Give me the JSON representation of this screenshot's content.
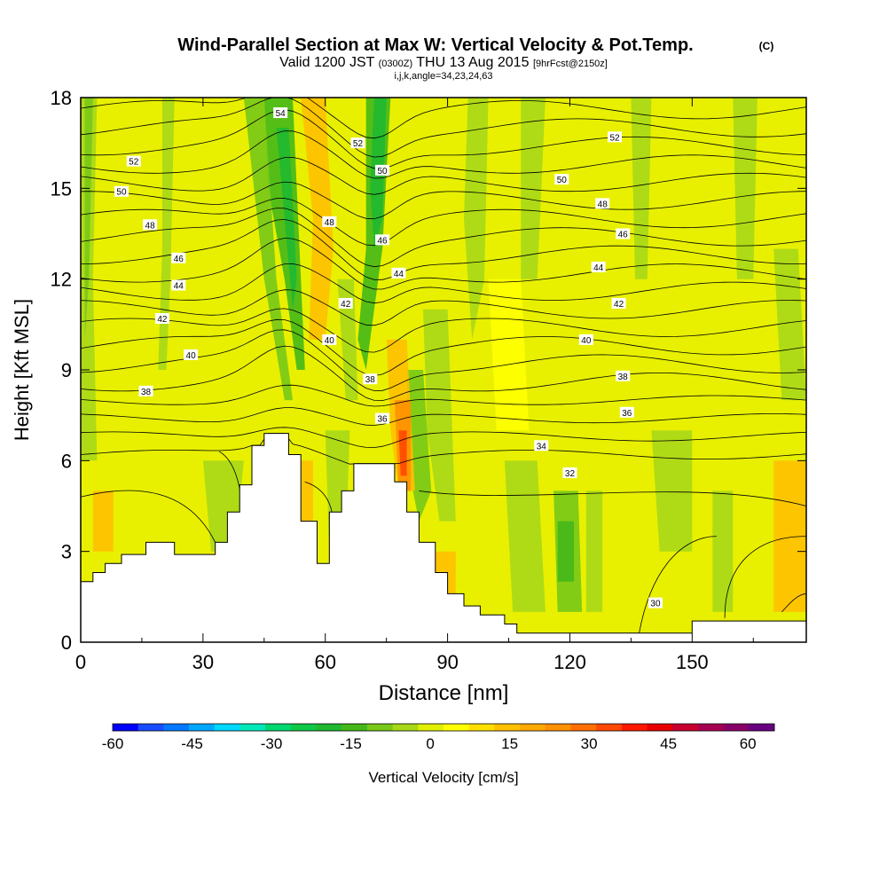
{
  "title": "Wind-Parallel Section at Max W: Vertical Velocity & Pot.Temp.",
  "title_suffix": "(C)",
  "subtitle_valid": "Valid 1200 JST",
  "subtitle_utc": "(0300Z)",
  "subtitle_date": "THU 13 Aug 2015",
  "subtitle_fcst": "[9hrFcst@2150z]",
  "subtitle_params": "i,j,k,angle=34,23,24,63",
  "chart_data": {
    "type": "heatmap",
    "xlabel": "Distance [nm]",
    "ylabel": "Height [Kft MSL]",
    "xlim": [
      0,
      178
    ],
    "ylim": [
      0,
      18
    ],
    "x_ticks": [
      0,
      30,
      60,
      90,
      120,
      150
    ],
    "y_ticks": [
      0,
      3,
      6,
      9,
      12,
      15,
      18
    ],
    "colorbar": {
      "label": "Vertical Velocity [cm/s]",
      "ticks": [
        -60,
        -45,
        -30,
        -15,
        0,
        15,
        30,
        45,
        60
      ],
      "levels": [
        -60,
        -55,
        -50,
        -45,
        -40,
        -35,
        -30,
        -25,
        -20,
        -15,
        -10,
        -5,
        0,
        5,
        10,
        15,
        20,
        25,
        30,
        35,
        40,
        45,
        50,
        55,
        60,
        65
      ],
      "colors": [
        "#0000ff",
        "#1a4cff",
        "#0078ff",
        "#00a8ff",
        "#00d8ff",
        "#00e8b8",
        "#00d870",
        "#10c848",
        "#20b830",
        "#44b818",
        "#78c818",
        "#a8d818",
        "#e0f000",
        "#ffff00",
        "#ffe000",
        "#ffc000",
        "#ffa800",
        "#ff9000",
        "#ff7000",
        "#ff4800",
        "#ff1800",
        "#e80000",
        "#c80030",
        "#a80050",
        "#880068",
        "#680080"
      ]
    },
    "field_colors": {
      "weak_down": "#a8d818",
      "moderate_down": "#78c818",
      "strong_down": "#44b818",
      "very_strong_down": "#20b830",
      "neutral": "#e8f000",
      "weak_up": "#ffff00",
      "moderate_up": "#ffc000",
      "strong_up": "#ff9000",
      "very_strong_up": "#ff4800"
    },
    "contour_labels": [
      {
        "x": 16,
        "y": 8.3,
        "value": "38"
      },
      {
        "x": 27,
        "y": 9.5,
        "value": "40"
      },
      {
        "x": 20,
        "y": 10.7,
        "value": "42"
      },
      {
        "x": 24,
        "y": 11.8,
        "value": "44"
      },
      {
        "x": 24,
        "y": 12.7,
        "value": "46"
      },
      {
        "x": 17,
        "y": 13.8,
        "value": "48"
      },
      {
        "x": 10,
        "y": 14.9,
        "value": "50"
      },
      {
        "x": 13,
        "y": 15.9,
        "value": "52"
      },
      {
        "x": 49,
        "y": 17.5,
        "value": "54"
      },
      {
        "x": 68,
        "y": 16.5,
        "value": "52"
      },
      {
        "x": 74,
        "y": 15.6,
        "value": "50"
      },
      {
        "x": 61,
        "y": 13.9,
        "value": "48"
      },
      {
        "x": 74,
        "y": 13.3,
        "value": "46"
      },
      {
        "x": 78,
        "y": 12.2,
        "value": "44"
      },
      {
        "x": 65,
        "y": 11.2,
        "value": "42"
      },
      {
        "x": 61,
        "y": 10.0,
        "value": "40"
      },
      {
        "x": 71,
        "y": 8.7,
        "value": "38"
      },
      {
        "x": 74,
        "y": 7.4,
        "value": "36"
      },
      {
        "x": 113,
        "y": 6.5,
        "value": "34"
      },
      {
        "x": 120,
        "y": 5.6,
        "value": "32"
      },
      {
        "x": 141,
        "y": 1.3,
        "value": "30"
      },
      {
        "x": 118,
        "y": 15.3,
        "value": "50"
      },
      {
        "x": 131,
        "y": 16.7,
        "value": "52"
      },
      {
        "x": 128,
        "y": 14.5,
        "value": "48"
      },
      {
        "x": 133,
        "y": 13.5,
        "value": "46"
      },
      {
        "x": 127,
        "y": 12.4,
        "value": "44"
      },
      {
        "x": 132,
        "y": 11.2,
        "value": "42"
      },
      {
        "x": 124,
        "y": 10.0,
        "value": "40"
      },
      {
        "x": 133,
        "y": 8.8,
        "value": "38"
      },
      {
        "x": 134,
        "y": 7.6,
        "value": "36"
      }
    ],
    "terrain_profile": [
      {
        "x": 0,
        "h": 2.0
      },
      {
        "x": 3,
        "h": 2.3
      },
      {
        "x": 6,
        "h": 2.6
      },
      {
        "x": 10,
        "h": 2.9
      },
      {
        "x": 16,
        "h": 3.3
      },
      {
        "x": 23,
        "h": 2.9
      },
      {
        "x": 33,
        "h": 3.3
      },
      {
        "x": 36,
        "h": 4.3
      },
      {
        "x": 39,
        "h": 5.2
      },
      {
        "x": 42,
        "h": 6.5
      },
      {
        "x": 45,
        "h": 6.9
      },
      {
        "x": 51,
        "h": 6.2
      },
      {
        "x": 54,
        "h": 4.0
      },
      {
        "x": 58,
        "h": 2.6
      },
      {
        "x": 61,
        "h": 4.3
      },
      {
        "x": 64,
        "h": 5.0
      },
      {
        "x": 67,
        "h": 5.9
      },
      {
        "x": 77,
        "h": 5.3
      },
      {
        "x": 80,
        "h": 4.3
      },
      {
        "x": 83,
        "h": 3.3
      },
      {
        "x": 87,
        "h": 2.3
      },
      {
        "x": 90,
        "h": 1.6
      },
      {
        "x": 94,
        "h": 1.2
      },
      {
        "x": 98,
        "h": 0.9
      },
      {
        "x": 104,
        "h": 0.6
      },
      {
        "x": 107,
        "h": 0.3
      },
      {
        "x": 148,
        "h": 0.3
      },
      {
        "x": 150,
        "h": 0.7
      },
      {
        "x": 178,
        "h": 0.7
      }
    ]
  }
}
